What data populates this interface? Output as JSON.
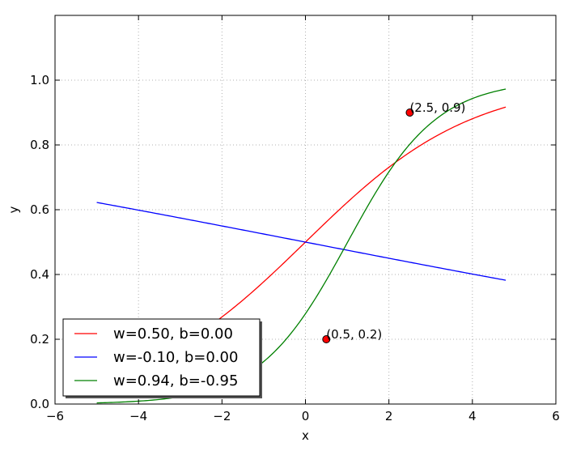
{
  "chart_data": {
    "type": "line",
    "xlabel": "x",
    "ylabel": "y",
    "xlim": [
      -6,
      6
    ],
    "ylim": [
      0.0,
      1.2
    ],
    "xticks": [
      -6,
      -4,
      -2,
      0,
      2,
      4,
      6
    ],
    "yticks": [
      0.0,
      0.2,
      0.4,
      0.6,
      0.8,
      1.0
    ],
    "xtick_labels": [
      "−6",
      "−4",
      "−2",
      "0",
      "2",
      "4",
      "6"
    ],
    "ytick_labels": [
      "0.0",
      "0.2",
      "0.4",
      "0.6",
      "0.8",
      "1.0"
    ],
    "grid": true,
    "legend_position": "lower-left",
    "series": [
      {
        "name": "w=0.50, b=0.00",
        "color": "#ff0000",
        "function": "sigmoid",
        "w": 0.5,
        "b": 0.0,
        "x_range": [
          -5.0,
          4.8
        ]
      },
      {
        "name": "w=-0.10, b=0.00",
        "color": "#0000ff",
        "function": "sigmoid",
        "w": -0.1,
        "b": 0.0,
        "x_range": [
          -5.0,
          4.8
        ]
      },
      {
        "name": "w=0.94, b=-0.95",
        "color": "#008000",
        "function": "sigmoid",
        "w": 0.94,
        "b": -0.95,
        "x_range": [
          -5.0,
          4.8
        ]
      }
    ],
    "points": [
      {
        "x": 0.5,
        "y": 0.2,
        "label": "(0.5, 0.2)",
        "color": "#ff0000"
      },
      {
        "x": 2.5,
        "y": 0.9,
        "label": "(2.5, 0.9)",
        "color": "#ff0000"
      }
    ]
  }
}
